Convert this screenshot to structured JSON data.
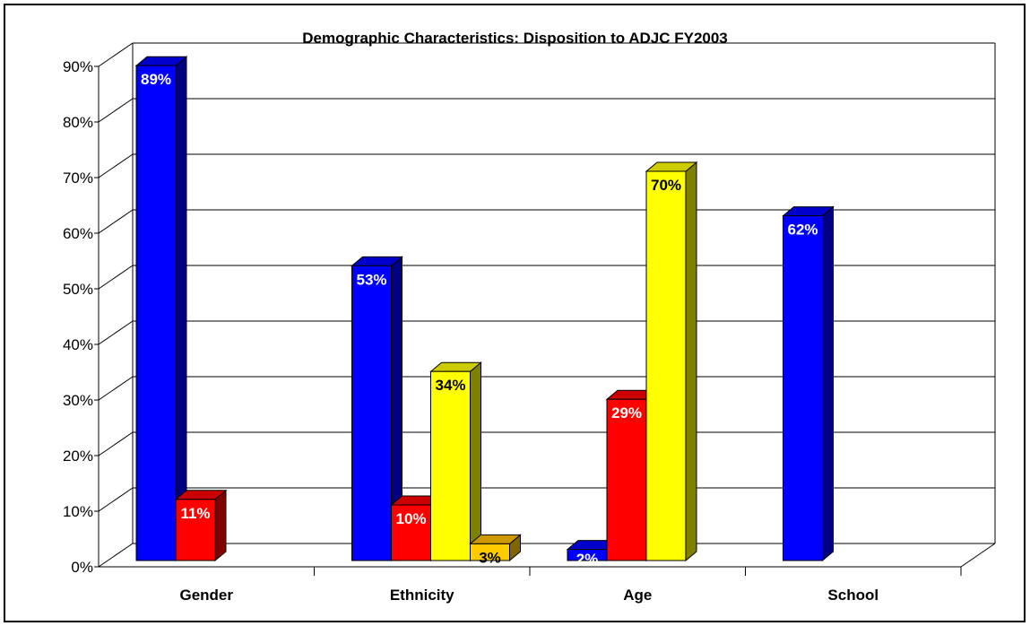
{
  "chart_data": {
    "type": "bar",
    "title": "Demographic Characteristics:  Disposition to ADJC FY2003",
    "categories": [
      "Gender",
      "Ethnicity",
      "Age",
      "School"
    ],
    "yticks": [
      "0%",
      "10%",
      "20%",
      "30%",
      "40%",
      "50%",
      "60%",
      "70%",
      "80%",
      "90%"
    ],
    "ylim": [
      0,
      90
    ],
    "grid": true,
    "legend": "none",
    "three_d": true,
    "series": [
      {
        "color": "#0000FF",
        "side_color": "#000080",
        "label_color": "#FFFFFF",
        "values": [
          89,
          53,
          2,
          62
        ]
      },
      {
        "color": "#FF0000",
        "side_color": "#800000",
        "label_color": "#FFFFFF",
        "values": [
          11,
          10,
          29,
          null
        ]
      },
      {
        "color": "#FFFF00",
        "side_color": "#808000",
        "label_color": "#000000",
        "values": [
          null,
          34,
          70,
          null
        ]
      },
      {
        "color": "#FFCC00",
        "side_color": "#806600",
        "label_color": "#000000",
        "values": [
          null,
          3,
          null,
          null
        ]
      }
    ],
    "data_labels": [
      [
        "89%",
        "53%",
        "2%",
        "62%"
      ],
      [
        "11%",
        "10%",
        "29%",
        ""
      ],
      [
        "",
        "34%",
        "70%",
        ""
      ],
      [
        "",
        "3%",
        "",
        ""
      ]
    ]
  }
}
